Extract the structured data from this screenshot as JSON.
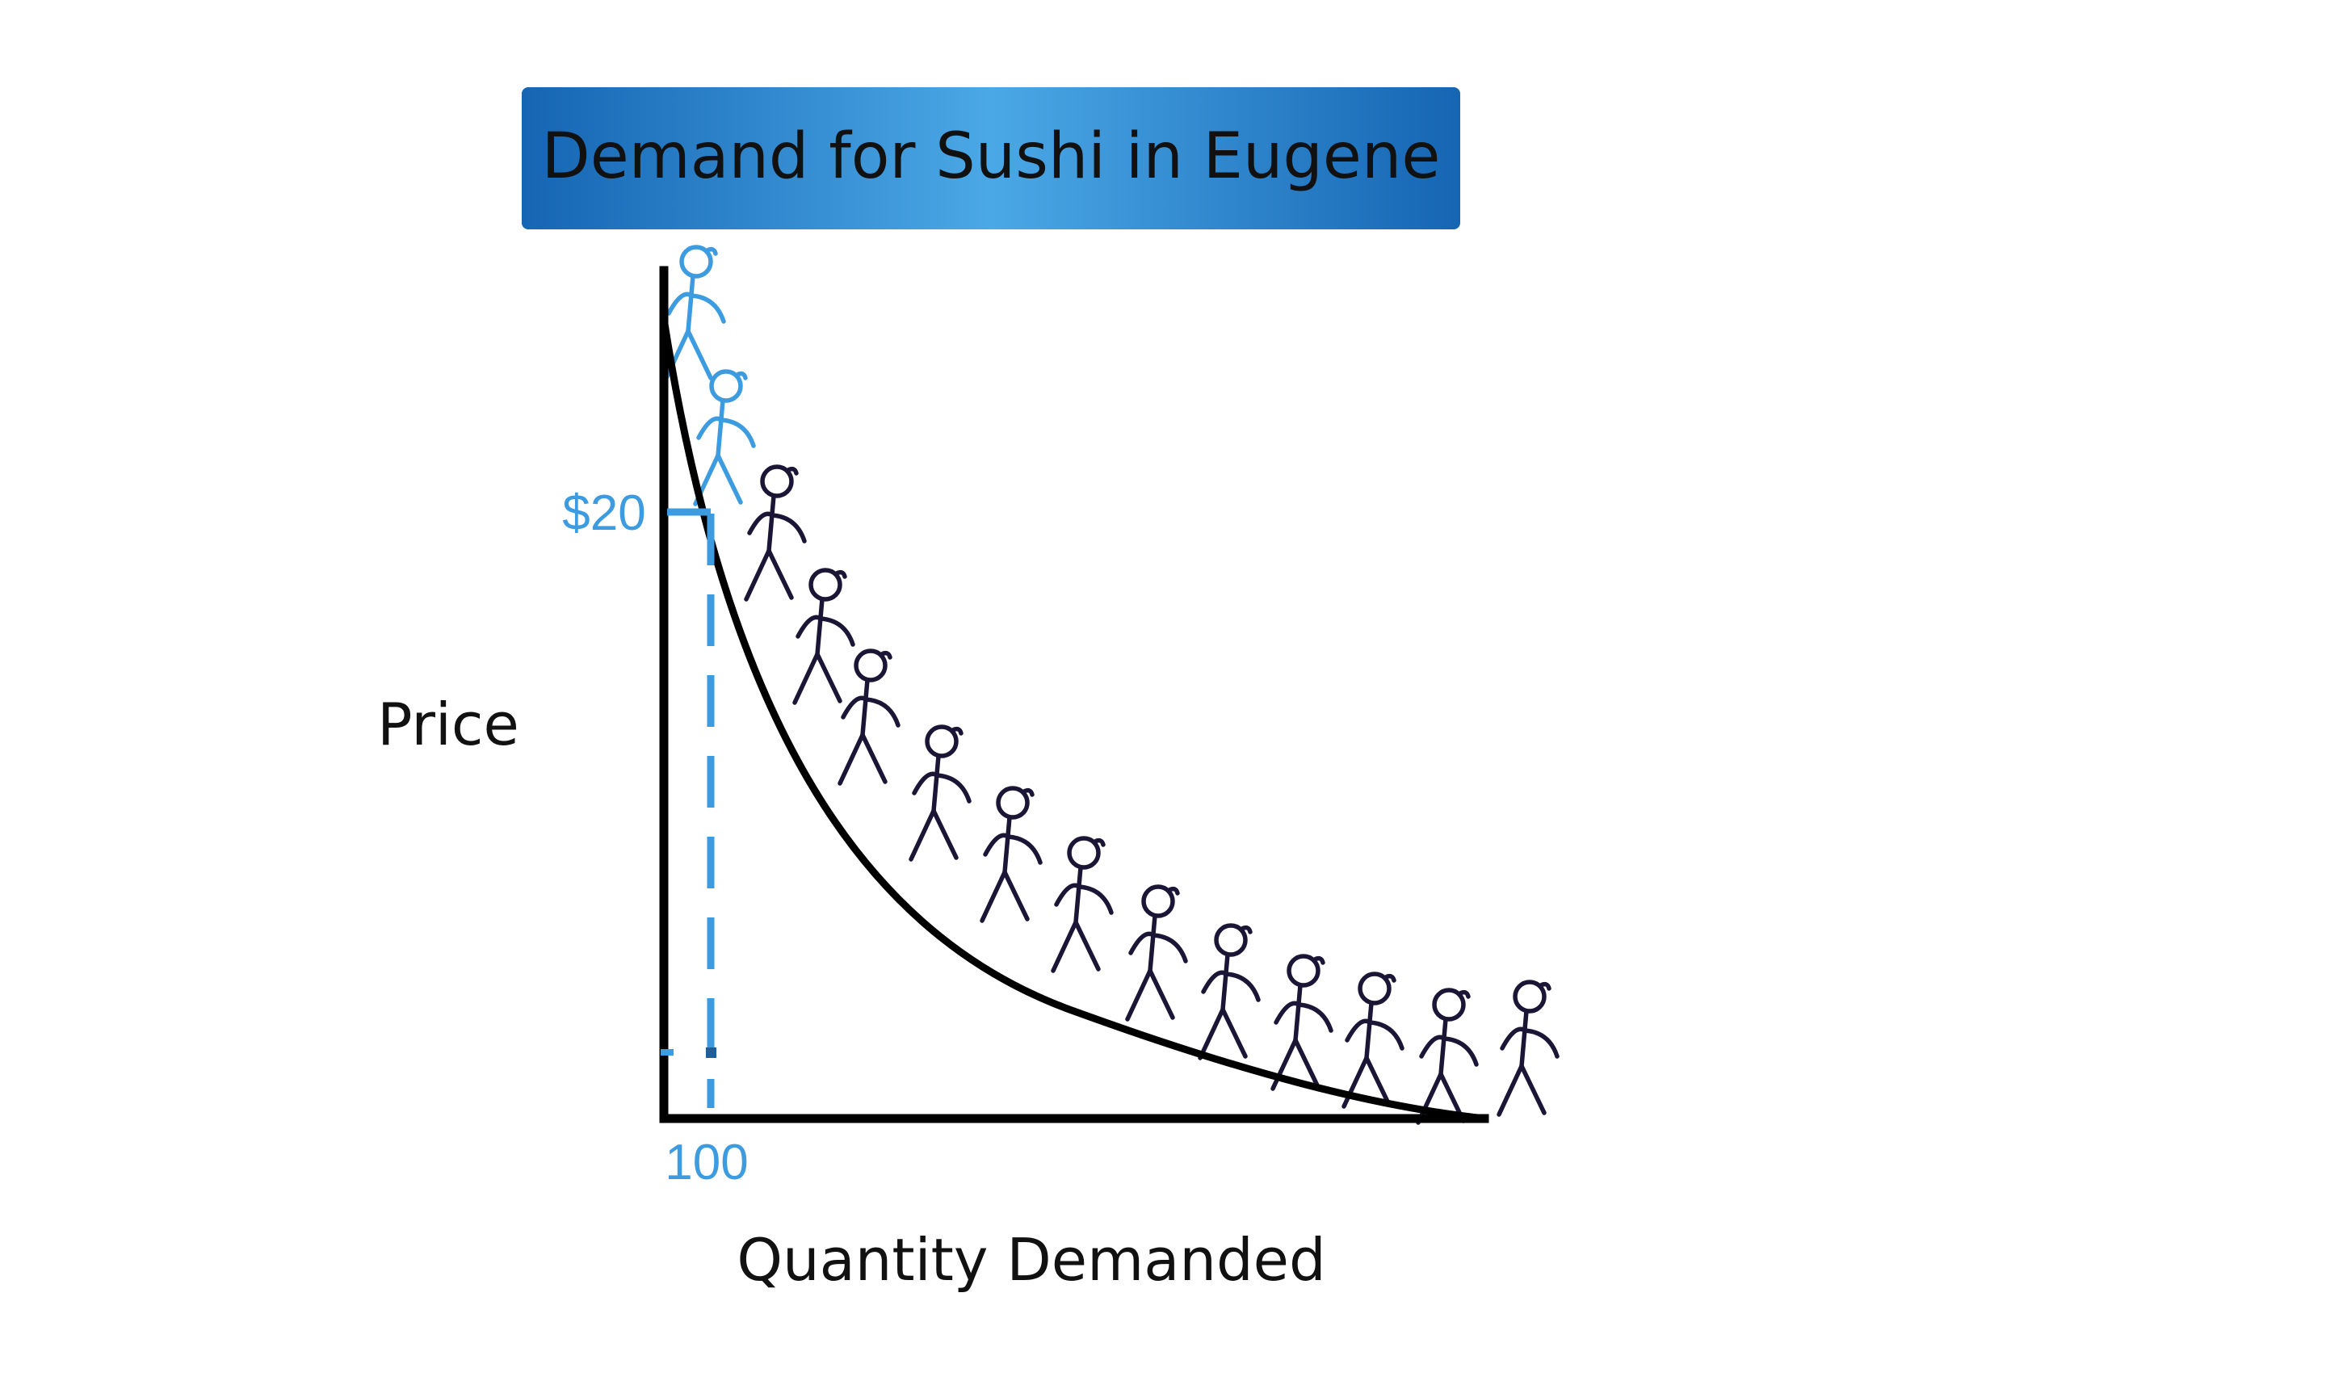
{
  "chart_data": {
    "type": "line",
    "title": "Demand for Sushi in Eugene",
    "xlabel": "Quantity Demanded",
    "ylabel": "Price",
    "highlight": {
      "price_label": "$20",
      "quantity_label": "100",
      "price": 20,
      "quantity": 100
    },
    "curve": {
      "shape": "convex decreasing demand curve",
      "people_count": 14,
      "highlighted_people": 2
    },
    "grid": false,
    "legend": "none"
  },
  "colors": {
    "title_bar_dark": "#1565b3",
    "title_bar_light": "#4ba8e6",
    "highlight": "#3d9be0",
    "curve": "#000000",
    "people": "#1c1636"
  },
  "icons": {
    "person": "stick-figure-icon"
  }
}
